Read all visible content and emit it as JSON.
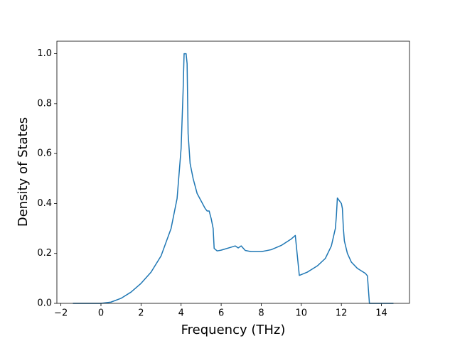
{
  "chart_data": {
    "type": "line",
    "xlabel": "Frequency (THz)",
    "ylabel": "Density of States",
    "xlim": [
      -2.2,
      15.4
    ],
    "ylim": [
      0,
      1.05
    ],
    "xticks": [
      {
        "value": -2,
        "label": "−2"
      },
      0,
      2,
      4,
      6,
      8,
      10,
      12,
      14
    ],
    "yticks": [
      {
        "value": 0,
        "label": "0.0"
      },
      0.2,
      0.4,
      0.6,
      0.8,
      {
        "value": 1,
        "label": "1.0"
      }
    ],
    "grid": false,
    "series": [
      {
        "color": "#1f77b4",
        "x": [
          -1.4,
          0,
          0.5,
          1,
          1.5,
          2,
          2.5,
          3,
          3.5,
          3.8,
          4.0,
          4.1,
          4.15,
          4.25,
          4.3,
          4.35,
          4.45,
          4.6,
          4.8,
          5.0,
          5.2,
          5.3,
          5.4,
          5.5,
          5.6,
          5.65,
          5.8,
          6.0,
          6.5,
          6.7,
          6.85,
          7.0,
          7.2,
          7.5,
          8.0,
          8.5,
          9.0,
          9.5,
          9.7,
          9.9,
          10.3,
          10.8,
          11.2,
          11.5,
          11.7,
          11.75,
          11.8,
          12.0,
          12.05,
          12.1,
          12.15,
          12.3,
          12.5,
          12.8,
          13.2,
          13.3,
          13.4,
          14.6
        ],
        "values": [
          0,
          0,
          0.005,
          0.02,
          0.045,
          0.08,
          0.125,
          0.19,
          0.3,
          0.42,
          0.62,
          0.85,
          1.0,
          1.0,
          0.96,
          0.68,
          0.56,
          0.5,
          0.44,
          0.41,
          0.38,
          0.37,
          0.37,
          0.34,
          0.3,
          0.22,
          0.21,
          0.213,
          0.225,
          0.23,
          0.222,
          0.23,
          0.212,
          0.207,
          0.207,
          0.215,
          0.232,
          0.258,
          0.272,
          0.112,
          0.125,
          0.15,
          0.18,
          0.23,
          0.3,
          0.35,
          0.422,
          0.4,
          0.38,
          0.3,
          0.25,
          0.2,
          0.165,
          0.14,
          0.12,
          0.11,
          0,
          0
        ]
      }
    ]
  }
}
